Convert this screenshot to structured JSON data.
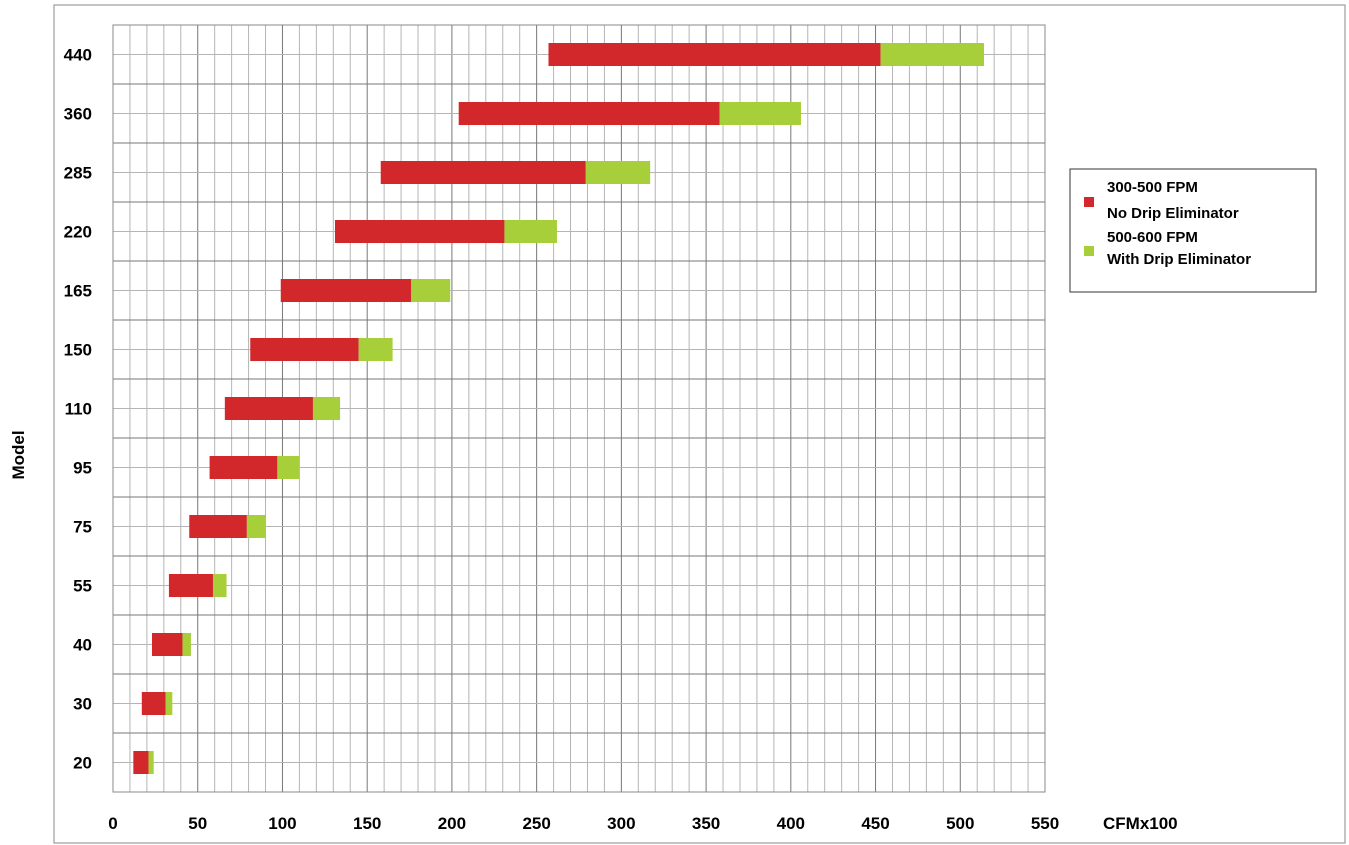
{
  "chart_data": {
    "type": "bar",
    "orientation": "horizontal",
    "stacked": true,
    "title": "",
    "xlabel": "CFMx100",
    "ylabel": "Model",
    "xlim": [
      0,
      550
    ],
    "xticks": [
      "0",
      "50",
      "100",
      "150",
      "200",
      "250",
      "300",
      "350",
      "400",
      "450",
      "500",
      "550"
    ],
    "x_minor_step": 10,
    "grid": true,
    "categories": [
      "440",
      "360",
      "285",
      "220",
      "165",
      "150",
      "110",
      "95",
      "75",
      "55",
      "40",
      "30",
      "20"
    ],
    "bar_start": [
      257,
      204,
      158,
      131,
      99,
      81,
      66,
      57,
      45,
      33,
      23,
      17,
      12
    ],
    "series": [
      {
        "name": "300-500 FPM No Drip Eliminator",
        "values": [
          196,
          154,
          121,
          100,
          77,
          64,
          52,
          40,
          34,
          26,
          18,
          14,
          9
        ],
        "color": "#d2282c"
      },
      {
        "name": "500-600 FPM With Drip Eliminator",
        "values": [
          61,
          48,
          38,
          31,
          23,
          20,
          16,
          13,
          11,
          8,
          5,
          4,
          3
        ],
        "color": "#a6cf3a"
      }
    ],
    "legend": {
      "position": "right",
      "entries": [
        {
          "line1": "300-500 FPM",
          "line2": "No Drip Eliminator",
          "color": "#d2282c"
        },
        {
          "line1": "500-600 FPM",
          "line2": "With Drip Eliminator",
          "color": "#a6cf3a"
        }
      ]
    }
  }
}
